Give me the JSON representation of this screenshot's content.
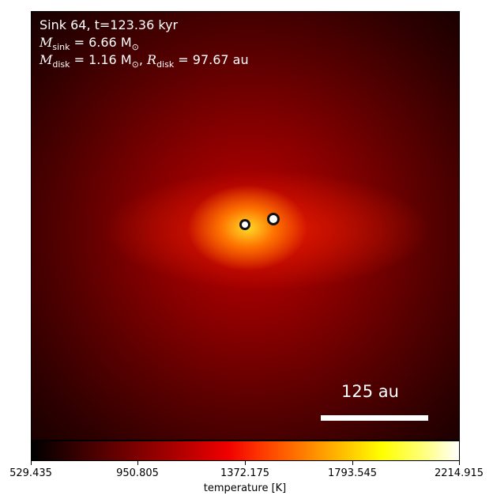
{
  "overlay": {
    "line1": "Sink 64, t=123.36 kyr",
    "msink_symbol": "M",
    "msink_sub": "sink",
    "msink_value": " = 6.66 M",
    "msink_sun": "⊙",
    "mdisk_symbol": "M",
    "mdisk_sub": "disk",
    "mdisk_value": " = 1.16 M",
    "mdisk_sun": "⊙",
    "sep": ", ",
    "rdisk_symbol": "R",
    "rdisk_sub": "disk",
    "rdisk_value": " = 97.67 au"
  },
  "scale_bar": {
    "label": "125 au"
  },
  "colorbar": {
    "label": "temperature [K]",
    "ticks": [
      "529.435",
      "950.805",
      "1372.175",
      "1793.545",
      "2214.915"
    ],
    "min": 529.435,
    "max": 2214.915
  },
  "colors": {
    "colormap": "hot",
    "sink_fill": "#ffffff",
    "sink_edge": "#111111"
  }
}
